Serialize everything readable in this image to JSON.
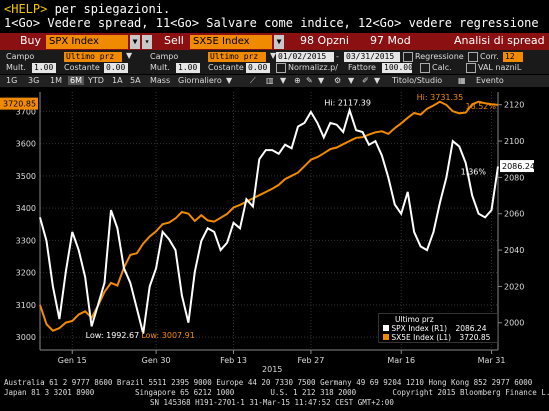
{
  "header": {
    "help_key": "<HELP>",
    "help_text": " per spiegazioni.",
    "go_line": "1<Go> Vedere spread, 11<Go> Salvare come indice, 12<Go> vedere regressione"
  },
  "toolbar": {
    "buy_label": "Buy",
    "buy_value": "SPX Index",
    "sell_label": "Sell",
    "sell_value": "SX5E Index",
    "options_label": "98 Opzni",
    "mod_label": "97 Mod",
    "analysis_label": "Analisi di spread"
  },
  "params": {
    "campo_label": "Campo",
    "campo1_value": "Ultimo prz",
    "campo2_value": "Ultimo prz",
    "start_date": "01/02/2015",
    "end_date": "03/31/2015",
    "regressione_label": "Regressione",
    "corr_label": "Corr.",
    "corr_value": "12",
    "mult_label": "Mult.",
    "mult1_value": "1.00",
    "costante_label": "Costante",
    "cost1_value": "0.00",
    "mult2_value": "1.00",
    "cost2_value": "0.00",
    "normalizz_label": "Normalizz.p/",
    "fattore_label": "Fattore",
    "fattore_value": "100.00",
    "calc_label": "Calc.",
    "val_label": "VAL nazniL"
  },
  "tabs": {
    "items": [
      "1G",
      "3G",
      "1M",
      "6M",
      "YTD",
      "1A",
      "5A",
      "Mass",
      "Giornaliero"
    ],
    "selected": "6M",
    "titolo_label": "Titolo/Studio",
    "evento_label": "Evento"
  },
  "colors": {
    "spx": "#ffffff",
    "sx5e": "#f08a00",
    "redbar": "#8a1012",
    "axis_highlight": "#f08a00"
  },
  "chart_data": {
    "type": "line",
    "x_labels": [
      "Gen 15",
      "Gen 30",
      "Feb 13",
      "Feb 27",
      "Mar 16",
      "Mar 31"
    ],
    "year_label": "2015",
    "left_axis": {
      "ticks": [
        3000,
        3100,
        3200,
        3300,
        3400,
        3500,
        3600,
        3700
      ],
      "range": [
        2960,
        3760
      ]
    },
    "right_axis": {
      "ticks": [
        2000,
        2020,
        2040,
        2060,
        2080,
        2100,
        2120
      ],
      "range": [
        1985,
        2127
      ]
    },
    "current_left_label": "3720.85",
    "current_right_label": "2086.24",
    "annotations": {
      "spx_high": "Hi: 2117.39",
      "sx5e_high": "Hi: 3731.35",
      "spx_low": "Low: 1992.67",
      "sx5e_low": "Low: 3007.91",
      "pct_sx5e": "18.52%",
      "pct_spx": "1.36%"
    },
    "legend_title": "Ultimo prz",
    "series": [
      {
        "name": "SPX Index (R1)",
        "last_value": "2086.24",
        "axis": "right",
        "values": [
          2058,
          2045,
          2020,
          2002,
          2028,
          2050,
          2040,
          2025,
          1998,
          2010,
          2022,
          2062,
          2052,
          2030,
          2022,
          2008,
          1994,
          2020,
          2030,
          2050,
          2046,
          2040,
          2015,
          2000,
          2028,
          2045,
          2052,
          2050,
          2040,
          2044,
          2055,
          2052,
          2068,
          2064,
          2090,
          2095,
          2095,
          2093,
          2098,
          2096,
          2108,
          2110,
          2116,
          2110,
          2102,
          2110,
          2109,
          2105,
          2117,
          2106,
          2105,
          2098,
          2100,
          2092,
          2080,
          2065,
          2060,
          2072,
          2050,
          2042,
          2040,
          2050,
          2066,
          2080,
          2100,
          2097,
          2088,
          2070,
          2060,
          2058,
          2062,
          2086
        ]
      },
      {
        "name": "SX5E Index (L1)",
        "last_value": "3720.85",
        "axis": "left",
        "values": [
          3100,
          3040,
          3020,
          3028,
          3045,
          3050,
          3070,
          3080,
          3060,
          3098,
          3140,
          3168,
          3160,
          3215,
          3255,
          3260,
          3290,
          3312,
          3328,
          3350,
          3355,
          3368,
          3388,
          3383,
          3360,
          3378,
          3362,
          3358,
          3370,
          3382,
          3402,
          3410,
          3420,
          3430,
          3440,
          3450,
          3460,
          3472,
          3490,
          3500,
          3510,
          3530,
          3550,
          3558,
          3570,
          3583,
          3588,
          3598,
          3608,
          3618,
          3620,
          3628,
          3635,
          3638,
          3630,
          3648,
          3663,
          3680,
          3695,
          3690,
          3708,
          3718,
          3730,
          3720,
          3700,
          3694,
          3696,
          3722,
          3730,
          3725,
          3722,
          3720
        ]
      }
    ]
  },
  "footer": {
    "line1": "Australia 61 2 9777 8600 Brazil 5511 2395 9000 Europe 44 20 7330 7500 Germany 49 69 9204 1210 Hong Kong 852 2977 6000",
    "line2": "Japan 81 3 3201 8900         Singapore 65 6212 1000        U.S. 1 212 318 2000        Copyright 2015 Bloomberg Finance L.P.",
    "line3": "SN 145368 H191-2701-1 31-Mar-15 11:47:52 CEST GMT+2:00"
  }
}
